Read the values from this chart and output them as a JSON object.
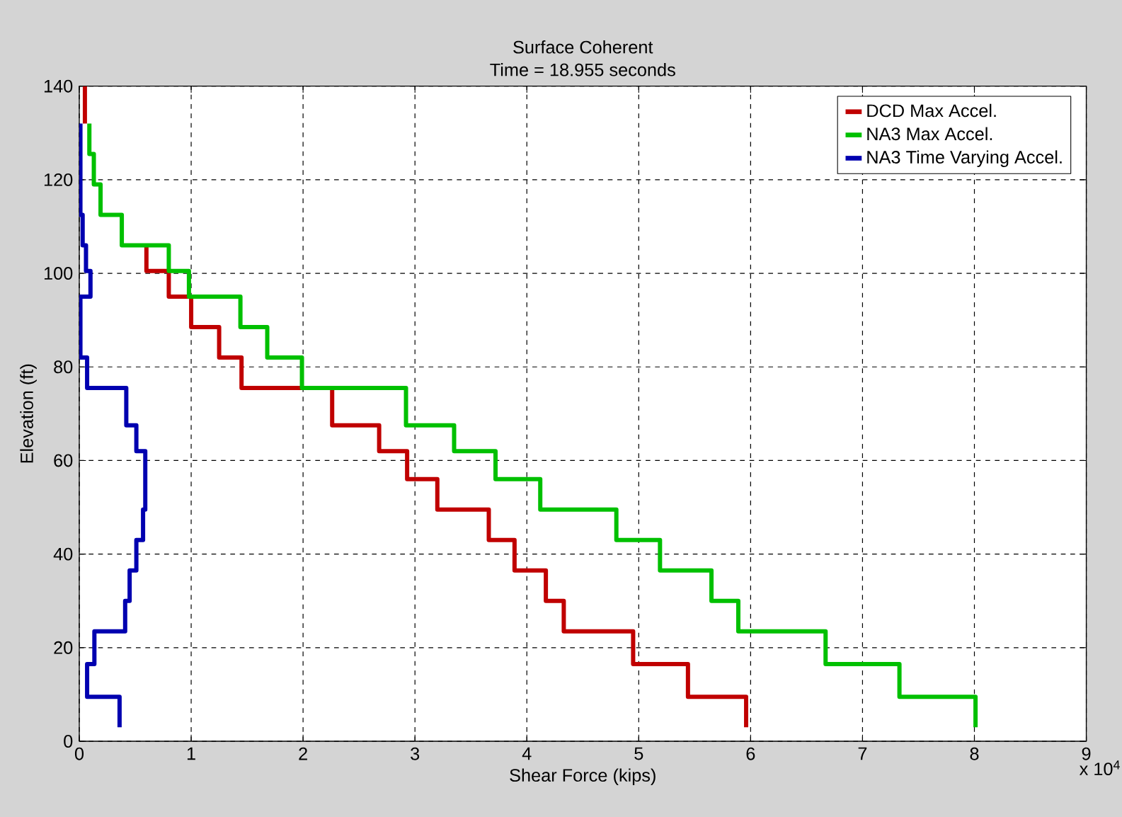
{
  "chart_data": {
    "type": "line",
    "title": "Surface Coherent",
    "subtitle": "Time = 18.955 seconds",
    "xlabel": "Shear Force (kips)",
    "ylabel": "Elevation (ft)",
    "annotations": [
      "x 10$^{4}$"
    ],
    "xlim": [
      0,
      9
    ],
    "xticks": [
      0,
      1,
      2,
      3,
      4,
      5,
      6,
      7,
      8,
      9
    ],
    "ylim": [
      0,
      140
    ],
    "yticks": [
      0,
      20,
      40,
      60,
      80,
      100,
      120,
      140
    ],
    "grid": true,
    "legend": "top right",
    "marker": "none",
    "line_style": "solid",
    "series": [
      {
        "name": "DCD Max  Accel.",
        "color": "#c00000",
        "x": [
          0.05,
          0.05,
          null,
          0.6,
          0.6,
          0.8,
          0.8,
          1.0,
          1.0,
          1.25,
          1.25,
          1.45,
          1.45,
          2.26,
          2.26,
          2.68,
          2.68,
          2.93,
          2.93,
          3.2,
          3.2,
          3.66,
          3.66,
          3.89,
          3.89,
          4.17,
          4.17,
          4.33,
          4.33,
          4.95,
          4.95,
          5.44,
          5.44,
          5.96,
          5.96
        ],
        "values": [
          140,
          132,
          null,
          106,
          100.5,
          100.5,
          95,
          95,
          88.5,
          88.5,
          82,
          82,
          75.5,
          75.5,
          67.5,
          67.5,
          62,
          62,
          56,
          56,
          49.5,
          49.5,
          43,
          43,
          36.5,
          36.5,
          30,
          30,
          23.5,
          23.5,
          16.5,
          16.5,
          9.5,
          9.5,
          3
        ]
      },
      {
        "name": "NA3 Max  Accel.",
        "color": "#00c000",
        "x": [
          0.09,
          0.09,
          0.13,
          0.13,
          0.19,
          0.19,
          0.38,
          0.38,
          0.8,
          0.8,
          0.98,
          0.98,
          1.44,
          1.44,
          1.68,
          1.68,
          1.99,
          1.99,
          2.92,
          2.92,
          3.35,
          3.35,
          3.72,
          3.72,
          4.12,
          4.12,
          4.8,
          4.8,
          5.19,
          5.19,
          5.65,
          5.65,
          5.89,
          5.89,
          6.67,
          6.67,
          7.33,
          7.33,
          8.01,
          8.01
        ],
        "values": [
          132,
          125.5,
          125.5,
          119,
          119,
          112.5,
          112.5,
          106,
          106,
          100.5,
          100.5,
          95,
          95,
          88.5,
          88.5,
          82,
          82,
          75.5,
          75.5,
          67.5,
          67.5,
          62,
          62,
          56,
          56,
          49.5,
          49.5,
          43,
          43,
          36.5,
          36.5,
          30,
          30,
          23.5,
          23.5,
          16.5,
          16.5,
          9.5,
          9.5,
          3
        ]
      },
      {
        "name": "NA3 Time Varying Accel.",
        "color": "#0000b0",
        "x": [
          0.01,
          0.01,
          0.03,
          0.03,
          0.06,
          0.06,
          0.1,
          0.1,
          0.01,
          0.01,
          0.07,
          0.07,
          0.42,
          0.42,
          0.51,
          0.51,
          0.59,
          0.59,
          0.57,
          0.57,
          0.51,
          0.51,
          0.45,
          0.45,
          0.41,
          0.41,
          0.135,
          0.135,
          0.07,
          0.07,
          0.36,
          0.36
        ],
        "values": [
          132,
          112.5,
          112.5,
          106,
          106,
          100.5,
          100.5,
          95,
          95,
          82,
          82,
          75.5,
          75.5,
          67.5,
          67.5,
          62,
          62,
          49.5,
          49.5,
          43,
          43,
          36.5,
          36.5,
          30,
          30,
          23.5,
          23.5,
          16.5,
          16.5,
          9.5,
          9.5,
          3
        ]
      }
    ]
  }
}
